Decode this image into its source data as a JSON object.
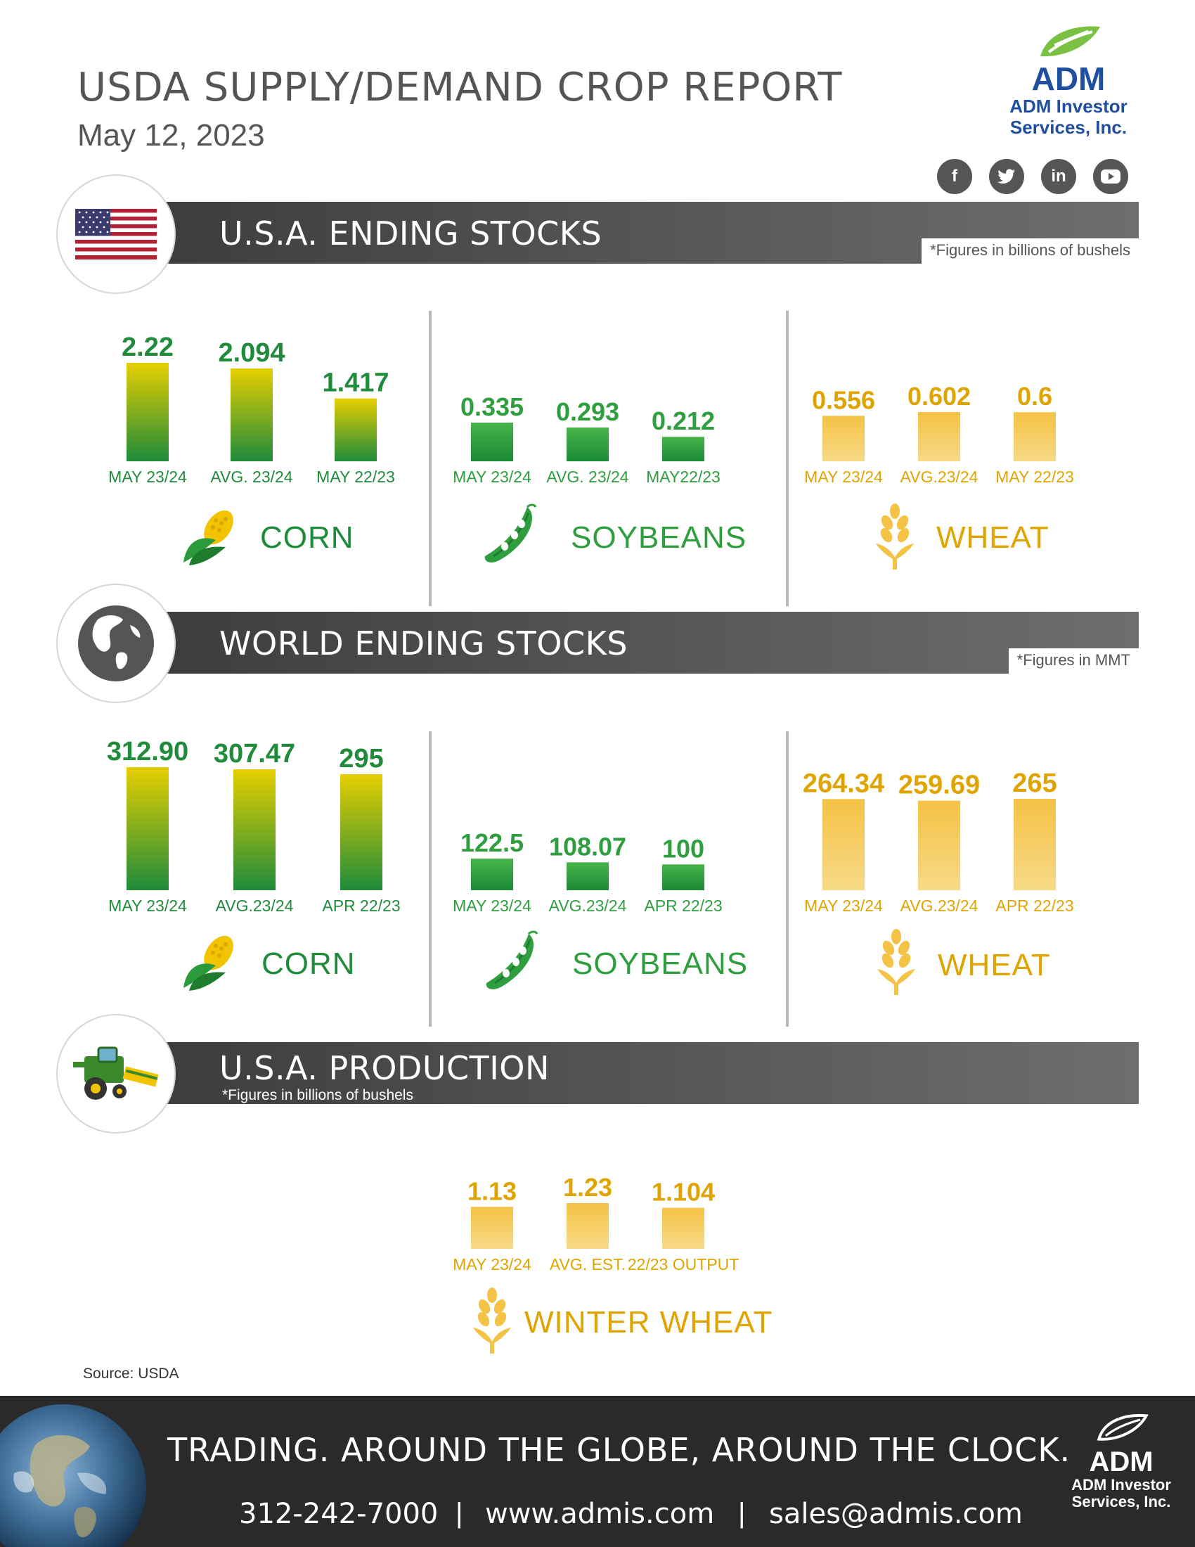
{
  "header": {
    "title": "USDA SUPPLY/DEMAND CROP REPORT",
    "date": "May 12, 2023",
    "brand": "ADM",
    "brand_sub1": "ADM Investor",
    "brand_sub2": "Services, Inc.",
    "social": [
      "f",
      "t",
      "in",
      "yt"
    ]
  },
  "sections": {
    "us_ending": {
      "title": "U.S.A. ENDING STOCKS",
      "note": "*Figures in billions of bushels"
    },
    "world_ending": {
      "title": "WORLD ENDING STOCKS",
      "note": "*Figures in MMT"
    },
    "us_production": {
      "title": "U.S.A. PRODUCTION",
      "note": "*Figures in billions of bushels"
    }
  },
  "colors": {
    "green_dark": "#1f8b3b",
    "green_light": "#e6cf00",
    "soy_green": "#2e9e3e",
    "wheat_gold": "#f4c245",
    "wheat_text": "#e0a400"
  },
  "chart_data": [
    {
      "id": "us_corn",
      "type": "bar",
      "crop": "CORN",
      "categories": [
        "MAY 23/24",
        "AVG. 23/24",
        "MAY 22/23"
      ],
      "values": [
        2.22,
        2.094,
        1.417
      ],
      "labels": [
        "2.22",
        "2.094",
        "1.417"
      ]
    },
    {
      "id": "us_soy",
      "type": "bar",
      "crop": "SOYBEANS",
      "categories": [
        "MAY 23/24",
        "AVG. 23/24",
        "MAY22/23"
      ],
      "values": [
        0.335,
        0.293,
        0.212
      ],
      "labels": [
        "0.335",
        "0.293",
        "0.212"
      ]
    },
    {
      "id": "us_wheat",
      "type": "bar",
      "crop": "WHEAT",
      "categories": [
        "MAY 23/24",
        "AVG.23/24",
        "MAY 22/23"
      ],
      "values": [
        0.556,
        0.602,
        0.6
      ],
      "labels": [
        "0.556",
        "0.602",
        "0.6"
      ]
    },
    {
      "id": "world_corn",
      "type": "bar",
      "crop": "CORN",
      "categories": [
        "MAY 23/24",
        "AVG.23/24",
        "APR 22/23"
      ],
      "values": [
        312.9,
        307.47,
        295
      ],
      "labels": [
        "312.90",
        "307.47",
        "295"
      ]
    },
    {
      "id": "world_soy",
      "type": "bar",
      "crop": "SOYBEANS",
      "categories": [
        "MAY 23/24",
        "AVG.23/24",
        "APR 22/23"
      ],
      "values": [
        122.5,
        108.07,
        100
      ],
      "labels": [
        "122.5",
        "108.07",
        "100"
      ]
    },
    {
      "id": "world_wheat",
      "type": "bar",
      "crop": "WHEAT",
      "categories": [
        "MAY 23/24",
        "AVG.23/24",
        "APR 22/23"
      ],
      "values": [
        264.34,
        259.69,
        265
      ],
      "labels": [
        "264.34",
        "259.69",
        "265"
      ]
    },
    {
      "id": "us_winter_wheat",
      "type": "bar",
      "crop": "WINTER WHEAT",
      "categories": [
        "MAY 23/24",
        "AVG. EST.",
        "22/23 OUTPUT"
      ],
      "values": [
        1.13,
        1.23,
        1.104
      ],
      "labels": [
        "1.13",
        "1.23",
        "1.104"
      ]
    }
  ],
  "source": "Source: USDA",
  "footer": {
    "tagline": "TRADING. AROUND THE GLOBE, AROUND THE CLOCK.",
    "phone": "312-242-7000",
    "web": "www.admis.com",
    "email": "sales@admis.com",
    "separator": "|",
    "brand": "ADM",
    "brand_sub1": "ADM Investor",
    "brand_sub2": "Services, Inc."
  }
}
